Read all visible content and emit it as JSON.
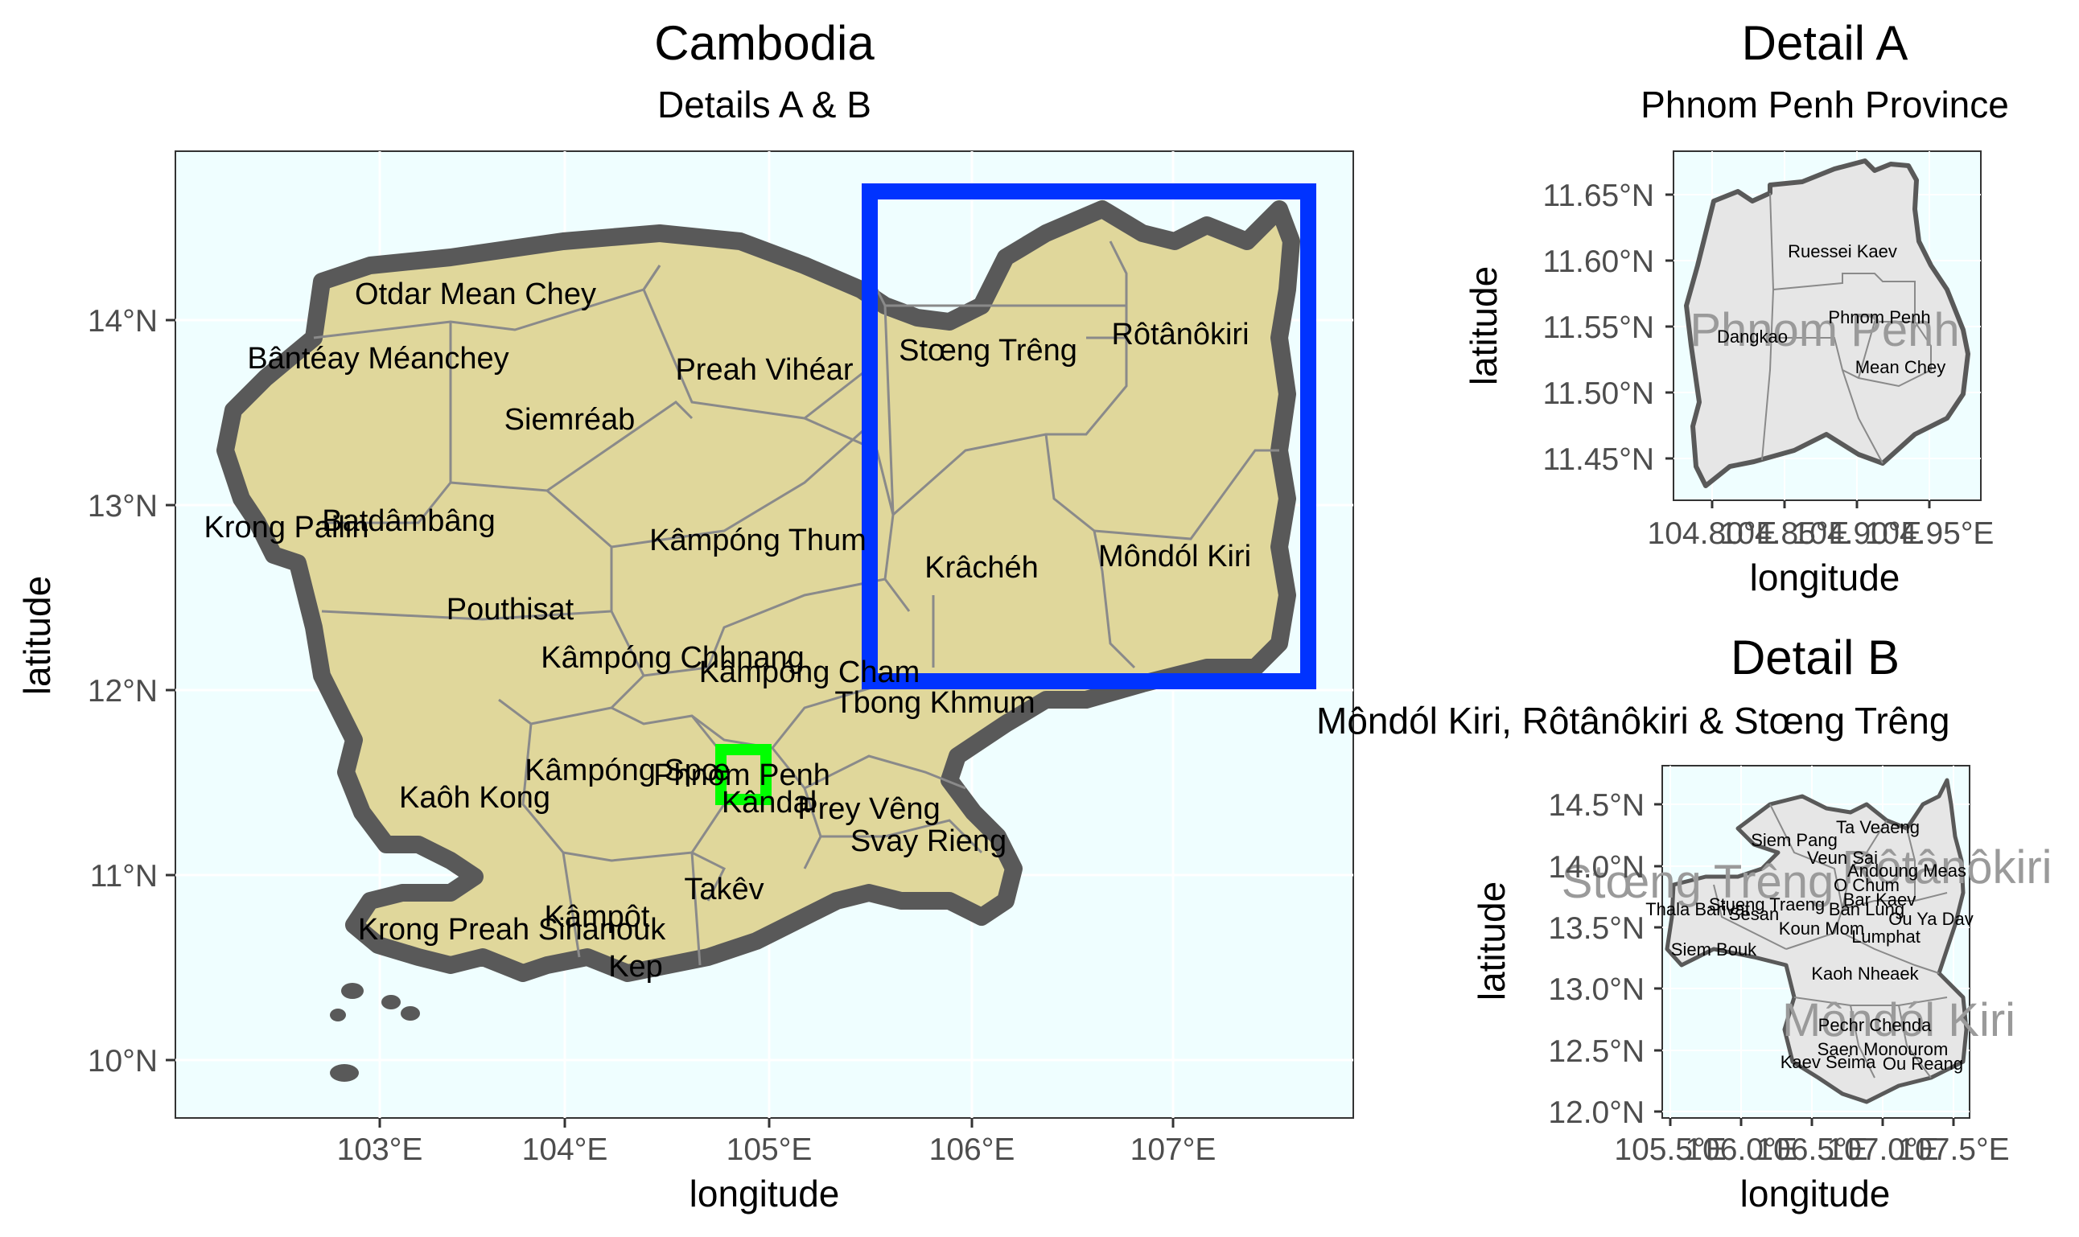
{
  "main_map": {
    "title": "Cambodia",
    "subtitle": "Details A & B",
    "xlabel": "longitude",
    "ylabel": "latitude",
    "x_ticks": [
      "103°E",
      "104°E",
      "105°E",
      "106°E",
      "107°E"
    ],
    "y_ticks": [
      "14°N",
      "13°N",
      "12°N",
      "11°N",
      "10°N"
    ],
    "province_labels": [
      "Otdar Mean Chey",
      "Bântéay Méanchey",
      "Preah Vihéar",
      "Siemréab",
      "Stœng Trêng",
      "Rôtânôkiri",
      "Krong Pailin",
      "Batdâmbâng",
      "Kâmpóng Thum",
      "Krâchéh",
      "Môndól Kiri",
      "Pouthisat",
      "Kâmpóng Chhnang",
      "Kâmpóng Cham",
      "Tbong Khmum",
      "Kâmpóng Spœ",
      "Phnom Penh",
      "Kaôh Kong",
      "Kândal",
      "Prey Vêng",
      "Svay Rieng",
      "Takêv",
      "Kâmpôt",
      "Krong Preah Sihanouk",
      "Kep"
    ],
    "colors": {
      "land": "#e0d79b",
      "water": "#effeff",
      "coast": "#595959",
      "border": "#8a8a8a",
      "detail_a_box": "#00ff00",
      "detail_b_box": "#0033ff"
    }
  },
  "detail_a": {
    "title": "Detail A",
    "subtitle": "Phnom Penh Province",
    "xlabel": "longitude",
    "ylabel": "latitude",
    "x_ticks": [
      "104.80°E",
      "104.85°E",
      "104.90°E",
      "104.95°E"
    ],
    "y_ticks": [
      "11.65°N",
      "11.60°N",
      "11.55°N",
      "11.50°N",
      "11.45°N"
    ],
    "big_label": "Phnom Penh",
    "district_labels": [
      "Ruessei Kaev",
      "Phnom Penh",
      "Dangkao",
      "Mean Chey"
    ],
    "colors": {
      "fill": "#e6e6e6",
      "outline": "#595959"
    }
  },
  "detail_b": {
    "title": "Detail B",
    "subtitle": "Môndól Kiri, Rôtânôkiri & Stœng Trêng",
    "xlabel": "longitude",
    "ylabel": "latitude",
    "x_ticks": [
      "105.5°E",
      "106.0°E",
      "106.5°E",
      "107.0°E",
      "107.5°E"
    ],
    "y_ticks": [
      "14.5°N",
      "14.0°N",
      "13.5°N",
      "13.0°N",
      "12.5°N",
      "12.0°N"
    ],
    "big_labels": [
      "Stœng Trêng",
      "Rôtânôkiri",
      "Môndól Kiri"
    ],
    "district_labels": [
      "Ta Veaeng",
      "Siem Pang",
      "Veun Sai",
      "Andoung Meas",
      "O Chum",
      "Thala Barivat",
      "Sesan",
      "Stueng Traeng",
      "Bar Kaev",
      "Ban Lung",
      "Ou Ya Dav",
      "Koun Mom",
      "Lumphat",
      "Siem Bouk",
      "Kaoh Nheaek",
      "Pechr Chenda",
      "Saen Monourom",
      "Kaev Seima",
      "Ou Reang"
    ],
    "colors": {
      "fill": "#e6e6e6",
      "outline": "#595959"
    }
  }
}
